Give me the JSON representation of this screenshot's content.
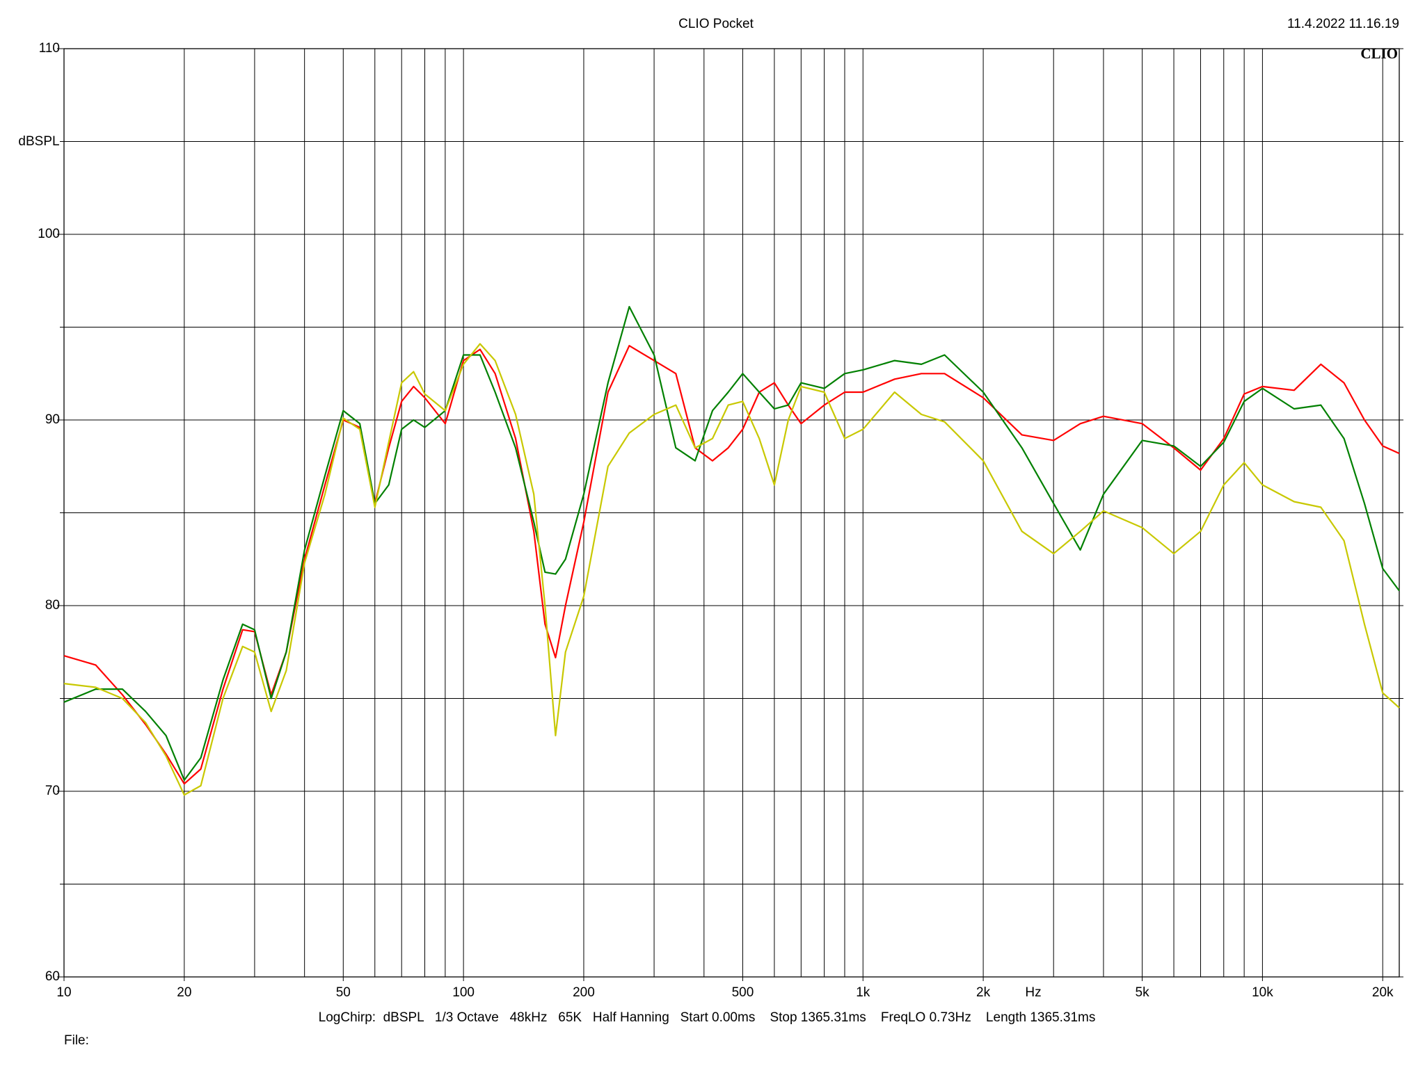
{
  "chart_data": {
    "type": "line",
    "title": "CLIO Pocket",
    "timestamp": "11.4.2022 11.16.19",
    "logo": "CLIO",
    "y_label": "dBSPL",
    "x_label": "Hz",
    "footer": "LogChirp:  dBSPL   1/3 Octave   48kHz   65K   Half Hanning   Start 0.00ms    Stop 1365.31ms    FreqLO 0.73Hz    Length 1365.31ms",
    "file_label": "File:",
    "x_scale": "log",
    "grid": true,
    "xlim": [
      10,
      22000
    ],
    "xticks": [
      10,
      20,
      50,
      100,
      200,
      500,
      {
        "value": 1000,
        "label": "1k"
      },
      {
        "value": 2000,
        "label": "2k"
      },
      {
        "value": 5000,
        "label": "5k"
      },
      {
        "value": 10000,
        "label": "10k"
      },
      {
        "value": 20000,
        "label": "20k"
      }
    ],
    "xminor": [
      30,
      40,
      60,
      70,
      80,
      90,
      300,
      400,
      600,
      700,
      800,
      900,
      3000,
      4000,
      6000,
      7000,
      8000,
      9000
    ],
    "ylim": [
      60,
      110
    ],
    "yticks": [
      60,
      70,
      80,
      90,
      100,
      110
    ],
    "yminor": [
      65,
      75,
      85,
      95,
      105
    ],
    "x": [
      10,
      12,
      14,
      16,
      18,
      20,
      22,
      25,
      28,
      30,
      33,
      36,
      40,
      45,
      50,
      55,
      60,
      65,
      70,
      75,
      80,
      90,
      100,
      110,
      120,
      135,
      150,
      160,
      170,
      180,
      200,
      230,
      260,
      300,
      340,
      380,
      420,
      460,
      500,
      550,
      600,
      650,
      700,
      800,
      900,
      1000,
      1200,
      1400,
      1600,
      2000,
      2500,
      3000,
      3500,
      4000,
      5000,
      6000,
      7000,
      8000,
      9000,
      10000,
      12000,
      14000,
      16000,
      18000,
      20000,
      22000
    ],
    "series": [
      {
        "name": "Red",
        "color": "#ff0000",
        "values": [
          77.3,
          76.8,
          75.2,
          73.6,
          72.0,
          70.4,
          71.2,
          75.5,
          78.7,
          78.6,
          75.2,
          77.5,
          82.5,
          86.5,
          90.0,
          89.6,
          85.5,
          88.5,
          91.0,
          91.8,
          91.2,
          89.8,
          93.2,
          93.8,
          92.5,
          89.0,
          84.0,
          79.0,
          77.2,
          80.0,
          84.5,
          91.5,
          94.0,
          93.2,
          92.5,
          88.5,
          87.8,
          88.5,
          89.5,
          91.5,
          92.0,
          90.8,
          89.8,
          90.8,
          91.5,
          91.5,
          92.2,
          92.5,
          92.5,
          91.2,
          89.2,
          88.9,
          89.8,
          90.2,
          89.8,
          88.5,
          87.3,
          89.0,
          91.4,
          91.8,
          91.6,
          93.0,
          92.0,
          90.0,
          88.6,
          88.2
        ]
      },
      {
        "name": "Green",
        "color": "#008000",
        "values": [
          74.8,
          75.5,
          75.5,
          74.3,
          73.0,
          70.6,
          71.8,
          76.0,
          79.0,
          78.7,
          75.0,
          77.5,
          83.0,
          87.0,
          90.5,
          89.8,
          85.5,
          86.5,
          89.5,
          90.0,
          89.6,
          90.5,
          93.5,
          93.5,
          91.5,
          88.5,
          84.5,
          81.8,
          81.7,
          82.5,
          86.0,
          92.0,
          96.1,
          93.5,
          88.5,
          87.8,
          90.5,
          91.5,
          92.5,
          91.5,
          90.6,
          90.8,
          92.0,
          91.7,
          92.5,
          92.7,
          93.2,
          93.0,
          93.5,
          91.5,
          88.5,
          85.5,
          83.0,
          86.0,
          88.9,
          88.6,
          87.5,
          88.8,
          91.0,
          91.7,
          90.6,
          90.8,
          89.0,
          85.5,
          82.0,
          80.8
        ]
      },
      {
        "name": "Yellow",
        "color": "#c8c800",
        "values": [
          75.8,
          75.6,
          75.0,
          73.7,
          71.9,
          69.8,
          70.3,
          75.0,
          77.8,
          77.5,
          74.3,
          76.5,
          82.3,
          86.0,
          90.1,
          89.5,
          85.3,
          88.8,
          92.0,
          92.6,
          91.4,
          90.5,
          93.0,
          94.1,
          93.2,
          90.3,
          86.0,
          80.0,
          73.0,
          77.5,
          80.5,
          87.5,
          89.3,
          90.3,
          90.8,
          88.5,
          89.0,
          90.8,
          91.0,
          89.0,
          86.5,
          90.0,
          91.8,
          91.5,
          89.0,
          89.5,
          91.5,
          90.3,
          89.9,
          87.8,
          84.0,
          82.8,
          84.0,
          85.1,
          84.2,
          82.8,
          84.0,
          86.5,
          87.7,
          86.5,
          85.6,
          85.3,
          83.5,
          79.0,
          75.3,
          74.5
        ]
      }
    ]
  }
}
